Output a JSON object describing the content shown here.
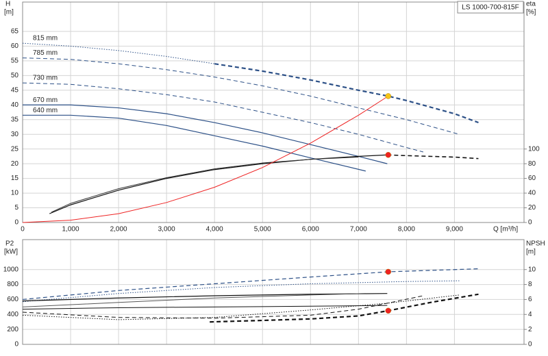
{
  "chart_data": [
    {
      "type": "line",
      "title": "LS 1000-700-815F",
      "x_label": "Q [m³/h]",
      "y_label": "H",
      "y_unit": "[m]",
      "y2_label": "eta",
      "y2_unit": "[%]",
      "xlim": [
        0,
        10450
      ],
      "ylim": [
        0,
        75
      ],
      "y2lim": [
        0,
        300
      ],
      "grid": true,
      "xticks": [
        0,
        {
          "value": 1000,
          "label": "1,000"
        },
        {
          "value": 2000,
          "label": "2,000"
        },
        {
          "value": 3000,
          "label": "3,000"
        },
        {
          "value": 4000,
          "label": "4,000"
        },
        {
          "value": 5000,
          "label": "5,000"
        },
        {
          "value": 6000,
          "label": "6,000"
        },
        {
          "value": 7000,
          "label": "7,000"
        },
        {
          "value": 8000,
          "label": "8,000"
        },
        {
          "value": 9000,
          "label": "9,000"
        }
      ],
      "yticks": [
        0,
        5,
        10,
        15,
        20,
        25,
        30,
        35,
        40,
        45,
        50,
        55,
        60,
        65
      ],
      "y2ticks": [
        0,
        20,
        40,
        60,
        80,
        100
      ],
      "series": [
        {
          "name": "815 mm",
          "color": "#2b4f86",
          "dash": "dotted",
          "width": 1,
          "x": [
            0,
            1000,
            2000,
            3000,
            4000
          ],
          "values": [
            61,
            60,
            58.5,
            56.5,
            54
          ]
        },
        {
          "color": "#2b4f86",
          "dash": "dashed",
          "width": 2.2,
          "x": [
            4000,
            5000,
            6000,
            7000,
            7620,
            8000,
            9000,
            9500
          ],
          "values": [
            54,
            51.5,
            48.5,
            45,
            43,
            41.5,
            37,
            34
          ]
        },
        {
          "name": "785 mm",
          "color": "#2b4f86",
          "dash": "dashed",
          "width": 1,
          "x": [
            0,
            1000,
            2000,
            3000,
            4000,
            5000,
            6000,
            7000,
            8000,
            9100
          ],
          "values": [
            56,
            55.5,
            54,
            52,
            49.5,
            46.5,
            43,
            39,
            35,
            30
          ]
        },
        {
          "name": "730 mm",
          "color": "#2b4f86",
          "dash": "dashed",
          "width": 1,
          "x": [
            0,
            1000,
            2000,
            3000,
            4000,
            5000,
            6000,
            7000,
            8000,
            8350
          ],
          "values": [
            47.5,
            47,
            45.5,
            43.5,
            41,
            37.5,
            34,
            30,
            25.5,
            24
          ]
        },
        {
          "name": "670 mm",
          "color": "#2b4f86",
          "dash": "solid",
          "width": 1.2,
          "x": [
            0,
            1000,
            2000,
            3000,
            4000,
            5000,
            6000,
            7000,
            7600
          ],
          "values": [
            40,
            40,
            39,
            37,
            34,
            30.5,
            26.5,
            22.5,
            20
          ]
        },
        {
          "name": "640 mm",
          "color": "#2b4f86",
          "dash": "solid",
          "width": 1.2,
          "x": [
            0,
            1000,
            2000,
            3000,
            4000,
            5000,
            6000,
            7150
          ],
          "values": [
            36.5,
            36.5,
            35.5,
            33,
            29.5,
            26,
            22,
            17.5
          ]
        },
        {
          "color": "#111111",
          "dash": "solid",
          "width": 1.2,
          "axis": "y2",
          "x": [
            560,
            1000,
            2000,
            3000,
            4000,
            5000,
            6000,
            7000,
            7600
          ],
          "values": [
            12,
            24,
            44,
            60,
            72,
            80,
            86,
            90,
            92
          ]
        },
        {
          "color": "#111111",
          "dash": "dashed",
          "width": 1.6,
          "axis": "y2",
          "x": [
            7600,
            8000,
            9000,
            9500
          ],
          "values": [
            92,
            91,
            89,
            87
          ]
        },
        {
          "color": "#333333",
          "dash": "solid",
          "width": 1,
          "axis": "y2",
          "x": [
            600,
            1000,
            2000,
            3000,
            4000,
            5000,
            6000,
            7000
          ],
          "values": [
            14,
            26,
            46,
            61,
            73,
            81,
            86,
            89
          ]
        },
        {
          "color": "#ee2222",
          "dash": "solid",
          "width": 1,
          "x": [
            0,
            1000,
            2000,
            3000,
            4000,
            5000,
            6000,
            7000,
            7620
          ],
          "values": [
            0,
            0.8,
            3,
            6.8,
            12,
            18.7,
            27,
            36.5,
            43
          ]
        }
      ],
      "points": [
        {
          "x": 7620,
          "y": 43,
          "color": "#f5c518"
        },
        {
          "x": 7620,
          "y": 92,
          "axis": "y2",
          "color": "#ee2222"
        }
      ]
    },
    {
      "type": "line",
      "y_label": "P2",
      "y_unit": "[kW]",
      "y2_label": "NPSH",
      "y2_unit": "[m]",
      "xlim": [
        0,
        10450
      ],
      "ylim": [
        0,
        1400
      ],
      "y2lim": [
        0,
        14
      ],
      "grid": true,
      "yticks": [
        0,
        200,
        400,
        600,
        800,
        1000
      ],
      "y2ticks": [
        0,
        2,
        4,
        6,
        8,
        10
      ],
      "series": [
        {
          "color": "#2b4f86",
          "dash": "dashed",
          "width": 1.2,
          "x": [
            0,
            2000,
            4000,
            6000,
            7620,
            9500
          ],
          "values": [
            600,
            720,
            810,
            900,
            970,
            1010
          ]
        },
        {
          "color": "#2b4f86",
          "dash": "dotted",
          "width": 1,
          "x": [
            0,
            2000,
            4000,
            6000,
            8000,
            9100
          ],
          "values": [
            570,
            680,
            760,
            810,
            840,
            850
          ]
        },
        {
          "color": "#111111",
          "dash": "solid",
          "width": 1.2,
          "x": [
            0,
            2000,
            4000,
            6000,
            7600
          ],
          "values": [
            580,
            620,
            650,
            670,
            680
          ]
        },
        {
          "color": "#555555",
          "dash": "solid",
          "width": 1,
          "x": [
            0,
            2000,
            4000,
            6000,
            7150
          ],
          "values": [
            500,
            560,
            620,
            660,
            680
          ]
        },
        {
          "color": "#111111",
          "dash": "solid",
          "width": 1,
          "x": [
            0,
            2000,
            4000,
            6000,
            7600
          ],
          "values": [
            470,
            490,
            500,
            510,
            520
          ]
        },
        {
          "color": "#111111",
          "dash": "dashed",
          "width": 2.2,
          "axis": "y2",
          "x": [
            3900,
            5000,
            6000,
            7000,
            7620,
            8500,
            9500
          ],
          "values": [
            3,
            3.2,
            3.4,
            3.8,
            4.5,
            5.6,
            6.7
          ]
        },
        {
          "color": "#111111",
          "dash": "dashed",
          "width": 1,
          "axis": "y2",
          "x": [
            0,
            2000,
            4000,
            6000,
            7000,
            8350
          ],
          "values": [
            4.3,
            3.6,
            3.5,
            3.9,
            4.7,
            6.5
          ]
        },
        {
          "color": "#111111",
          "dash": "dotted",
          "width": 1,
          "axis": "y2",
          "x": [
            0,
            2000,
            4000,
            6000,
            7600,
            9100
          ],
          "values": [
            3.9,
            3.3,
            3.6,
            4.6,
            5.5,
            6.6
          ]
        }
      ],
      "points": [
        {
          "x": 7620,
          "y": 970,
          "color": "#ee2222"
        },
        {
          "x": 7620,
          "y": 4.5,
          "axis": "y2",
          "color": "#ee2222"
        }
      ]
    }
  ]
}
